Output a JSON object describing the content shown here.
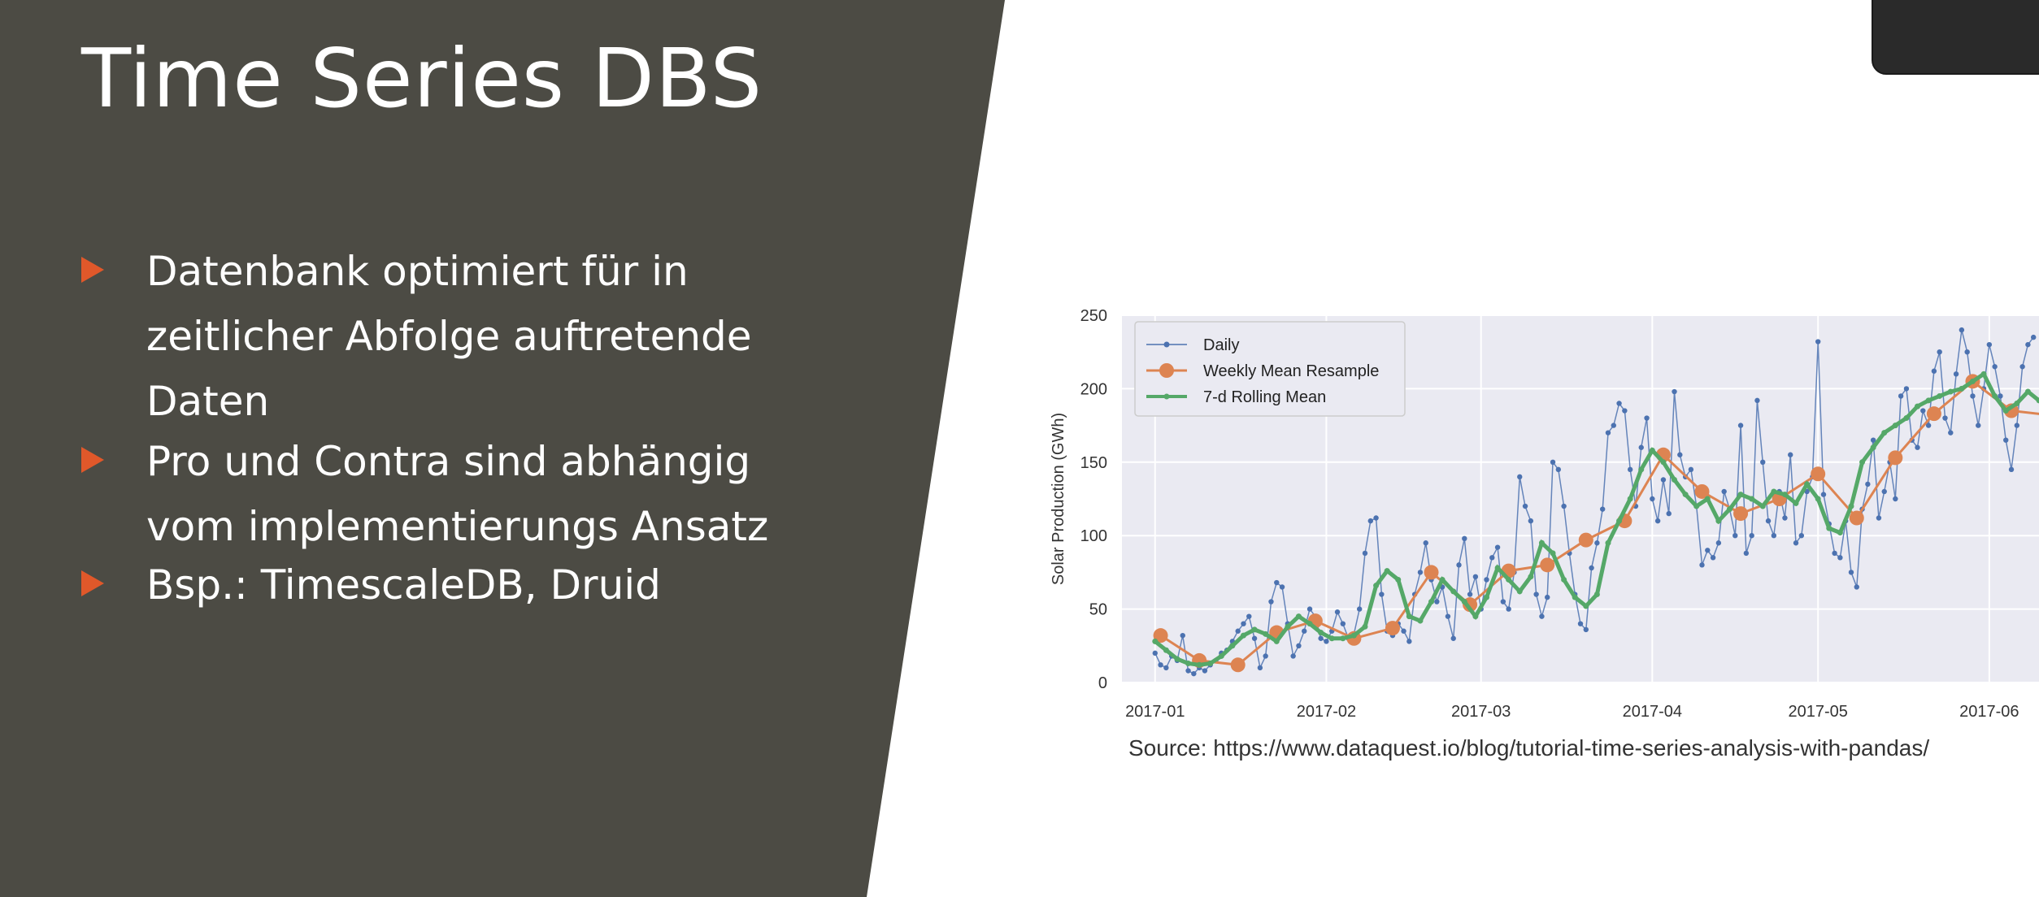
{
  "slide": {
    "title": "Time Series DBS",
    "bullets": [
      "Datenbank optimiert für in zeitlicher Abfolge auftretende Daten",
      "Pro und Contra sind abhängig vom implementierungs Ansatz",
      "Bsp.: TimescaleDB, Druid"
    ],
    "source": "Source: https://www.dataquest.io/blog/tutorial-time-series-analysis-with-pandas/",
    "colors": {
      "panel": "#4c4b44",
      "bullet_marker": "#e0582a",
      "text": "#ffffff",
      "plot_bg": "#eaeaf2"
    }
  },
  "chart_data": {
    "type": "line",
    "ylabel": "Solar Production (GWh)",
    "xlabel": "",
    "ylim": [
      0,
      250
    ],
    "yticks": [
      0,
      50,
      100,
      150,
      200,
      250
    ],
    "x_tick_labels": [
      "2017-01",
      "2017-02",
      "2017-03",
      "2017-04",
      "2017-05",
      "2017-06"
    ],
    "x_tick_days": [
      0,
      31,
      59,
      90,
      120,
      151
    ],
    "xlim_days": [
      -6,
      160
    ],
    "grid": true,
    "legend_position": "top-left",
    "series": [
      {
        "name": "Daily",
        "color": "#4c72b0",
        "x_days": [
          0,
          1,
          2,
          3,
          4,
          5,
          6,
          7,
          8,
          9,
          10,
          11,
          12,
          13,
          14,
          15,
          16,
          17,
          18,
          19,
          20,
          21,
          22,
          23,
          24,
          25,
          26,
          27,
          28,
          29,
          30,
          31,
          32,
          33,
          34,
          35,
          36,
          37,
          38,
          39,
          40,
          41,
          42,
          43,
          44,
          45,
          46,
          47,
          48,
          49,
          50,
          51,
          52,
          53,
          54,
          55,
          56,
          57,
          58,
          59,
          60,
          61,
          62,
          63,
          64,
          65,
          66,
          67,
          68,
          69,
          70,
          71,
          72,
          73,
          74,
          75,
          76,
          77,
          78,
          79,
          80,
          81,
          82,
          83,
          84,
          85,
          86,
          87,
          88,
          89,
          90,
          91,
          92,
          93,
          94,
          95,
          96,
          97,
          98,
          99,
          100,
          101,
          102,
          103,
          104,
          105,
          106,
          107,
          108,
          109,
          110,
          111,
          112,
          113,
          114,
          115,
          116,
          117,
          118,
          119,
          120,
          121,
          122,
          123,
          124,
          125,
          126,
          127,
          128,
          129,
          130,
          131,
          132,
          133,
          134,
          135,
          136,
          137,
          138,
          139,
          140,
          141,
          142,
          143,
          144,
          145,
          146,
          147,
          148,
          149,
          150,
          151,
          152,
          153,
          154,
          155,
          156,
          157,
          158,
          159
        ],
        "values": [
          20,
          12,
          10,
          18,
          15,
          32,
          8,
          6,
          10,
          8,
          12,
          15,
          20,
          22,
          28,
          35,
          40,
          45,
          30,
          10,
          18,
          55,
          68,
          65,
          40,
          18,
          25,
          35,
          50,
          45,
          30,
          28,
          35,
          48,
          40,
          30,
          33,
          50,
          88,
          110,
          112,
          60,
          35,
          32,
          40,
          35,
          28,
          60,
          75,
          95,
          70,
          55,
          65,
          45,
          30,
          80,
          98,
          60,
          72,
          50,
          70,
          85,
          92,
          55,
          50,
          75,
          140,
          120,
          110,
          60,
          45,
          58,
          150,
          145,
          120,
          88,
          60,
          40,
          36,
          78,
          95,
          118,
          170,
          175,
          190,
          185,
          145,
          120,
          160,
          180,
          125,
          110,
          138,
          115,
          198,
          155,
          140,
          145,
          120,
          80,
          90,
          85,
          95,
          130,
          118,
          100,
          175,
          88,
          100,
          192,
          150,
          110,
          100,
          130,
          112,
          155,
          95,
          100,
          130,
          140,
          232,
          128,
          108,
          88,
          85,
          110,
          75,
          65,
          118,
          135,
          165,
          112,
          130,
          150,
          125,
          195,
          200,
          165,
          160,
          185,
          175,
          212,
          225,
          180,
          170,
          210,
          240,
          225,
          195,
          175,
          200,
          230,
          215,
          195,
          165,
          145,
          175,
          215,
          230,
          235
        ]
      },
      {
        "name": "Weekly Mean Resample",
        "color": "#dd8452",
        "x_days": [
          1,
          8,
          15,
          22,
          29,
          36,
          43,
          50,
          57,
          64,
          71,
          78,
          85,
          92,
          99,
          106,
          113,
          120,
          127,
          134,
          141,
          148,
          155,
          162
        ],
        "values": [
          32,
          15,
          12,
          34,
          42,
          30,
          37,
          75,
          53,
          76,
          80,
          97,
          110,
          155,
          130,
          115,
          125,
          142,
          112,
          153,
          183,
          205,
          185,
          182
        ]
      },
      {
        "name": "7-d Rolling Mean",
        "color": "#55a868",
        "x_days": [
          0,
          2,
          4,
          6,
          8,
          10,
          12,
          14,
          16,
          18,
          20,
          22,
          24,
          26,
          28,
          30,
          32,
          34,
          36,
          38,
          40,
          42,
          44,
          46,
          48,
          50,
          52,
          54,
          56,
          58,
          60,
          62,
          64,
          66,
          68,
          70,
          72,
          74,
          76,
          78,
          80,
          82,
          84,
          86,
          88,
          90,
          92,
          94,
          96,
          98,
          100,
          102,
          104,
          106,
          108,
          110,
          112,
          114,
          116,
          118,
          120,
          122,
          124,
          126,
          128,
          130,
          132,
          134,
          136,
          138,
          140,
          142,
          144,
          146,
          148,
          150,
          152,
          154,
          156,
          158,
          160
        ],
        "values": [
          28,
          22,
          16,
          13,
          12,
          13,
          18,
          25,
          32,
          36,
          33,
          28,
          38,
          45,
          40,
          34,
          30,
          30,
          32,
          38,
          66,
          76,
          70,
          45,
          42,
          55,
          70,
          62,
          55,
          45,
          58,
          78,
          70,
          62,
          72,
          95,
          88,
          70,
          58,
          52,
          60,
          95,
          110,
          125,
          145,
          158,
          150,
          138,
          128,
          120,
          125,
          110,
          118,
          128,
          125,
          120,
          130,
          128,
          122,
          135,
          125,
          105,
          102,
          120,
          150,
          160,
          170,
          175,
          180,
          188,
          192,
          195,
          198,
          200,
          205,
          210,
          195,
          185,
          190,
          198,
          192
        ]
      }
    ]
  }
}
